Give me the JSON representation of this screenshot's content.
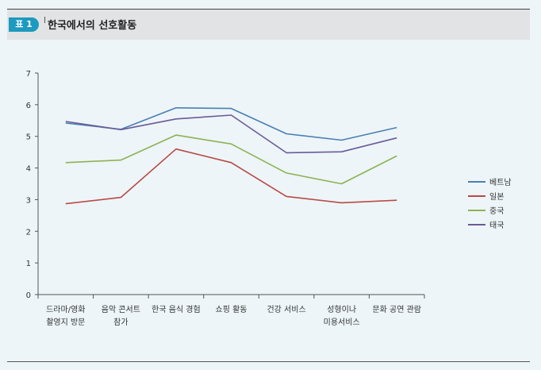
{
  "header": {
    "badge": "표 1",
    "title": "한국에서의 선호활동"
  },
  "chart_data": {
    "type": "line",
    "title": "한국에서의 선호활동",
    "xlabel": "",
    "ylabel": "",
    "ylim": [
      0,
      7
    ],
    "yticks": [
      0,
      1,
      2,
      3,
      4,
      5,
      6,
      7
    ],
    "grid": false,
    "legend_position": "right",
    "categories": [
      [
        "드라마/영화",
        "촬영지 방문"
      ],
      [
        "음악 콘서트",
        "참가"
      ],
      [
        "한국 음식 경험"
      ],
      [
        "쇼핑 활동"
      ],
      [
        "건강 서비스"
      ],
      [
        "성형이나",
        "미용서비스"
      ],
      [
        "문화 공연 관람"
      ]
    ],
    "series": [
      {
        "name": "베트남",
        "color": "#4a7fb5",
        "values": [
          5.42,
          5.22,
          5.9,
          5.88,
          5.08,
          4.88,
          5.28
        ]
      },
      {
        "name": "일본",
        "color": "#b84a45",
        "values": [
          2.87,
          3.07,
          4.6,
          4.17,
          3.1,
          2.9,
          2.98
        ]
      },
      {
        "name": "중국",
        "color": "#8fb153",
        "values": [
          4.17,
          4.25,
          5.04,
          4.76,
          3.84,
          3.5,
          4.38
        ]
      },
      {
        "name": "태국",
        "color": "#6a5a99",
        "values": [
          5.47,
          5.21,
          5.55,
          5.67,
          4.48,
          4.51,
          4.95
        ]
      }
    ]
  }
}
